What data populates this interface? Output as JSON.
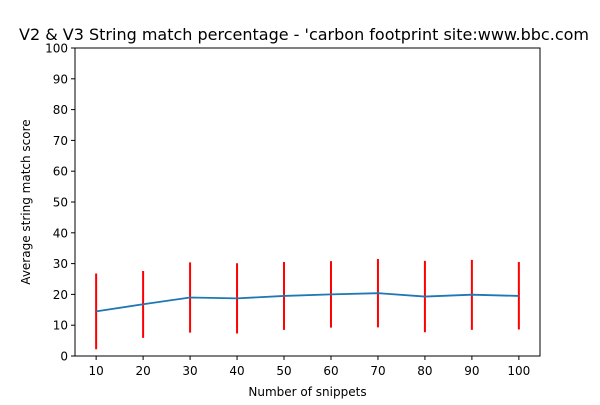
{
  "chart_data": {
    "type": "line",
    "title": "V2 & V3 String match percentage - 'carbon footprint site:www.bbc.com",
    "xlabel": "Number of snippets",
    "ylabel": "Average string match score",
    "x": [
      10,
      20,
      30,
      40,
      50,
      60,
      70,
      80,
      90,
      100
    ],
    "xticks": [
      "10",
      "20",
      "30",
      "40",
      "50",
      "60",
      "70",
      "80",
      "90",
      "100"
    ],
    "yticks": [
      "0",
      "10",
      "20",
      "30",
      "40",
      "50",
      "60",
      "70",
      "80",
      "90",
      "100"
    ],
    "ylim": [
      0,
      100
    ],
    "grid": false,
    "series": [
      {
        "values": [
          14.5,
          16.8,
          19.0,
          18.7,
          19.5,
          20.0,
          20.4,
          19.3,
          19.9,
          19.5
        ],
        "error_low": [
          2.2,
          5.9,
          7.6,
          7.3,
          8.5,
          9.2,
          9.3,
          7.7,
          8.5,
          8.6
        ],
        "error_high": [
          26.8,
          27.6,
          30.4,
          30.1,
          30.5,
          30.8,
          31.5,
          30.9,
          31.2,
          30.5
        ],
        "line_color": "#1f77b4",
        "error_color": "#ff0000"
      }
    ]
  }
}
